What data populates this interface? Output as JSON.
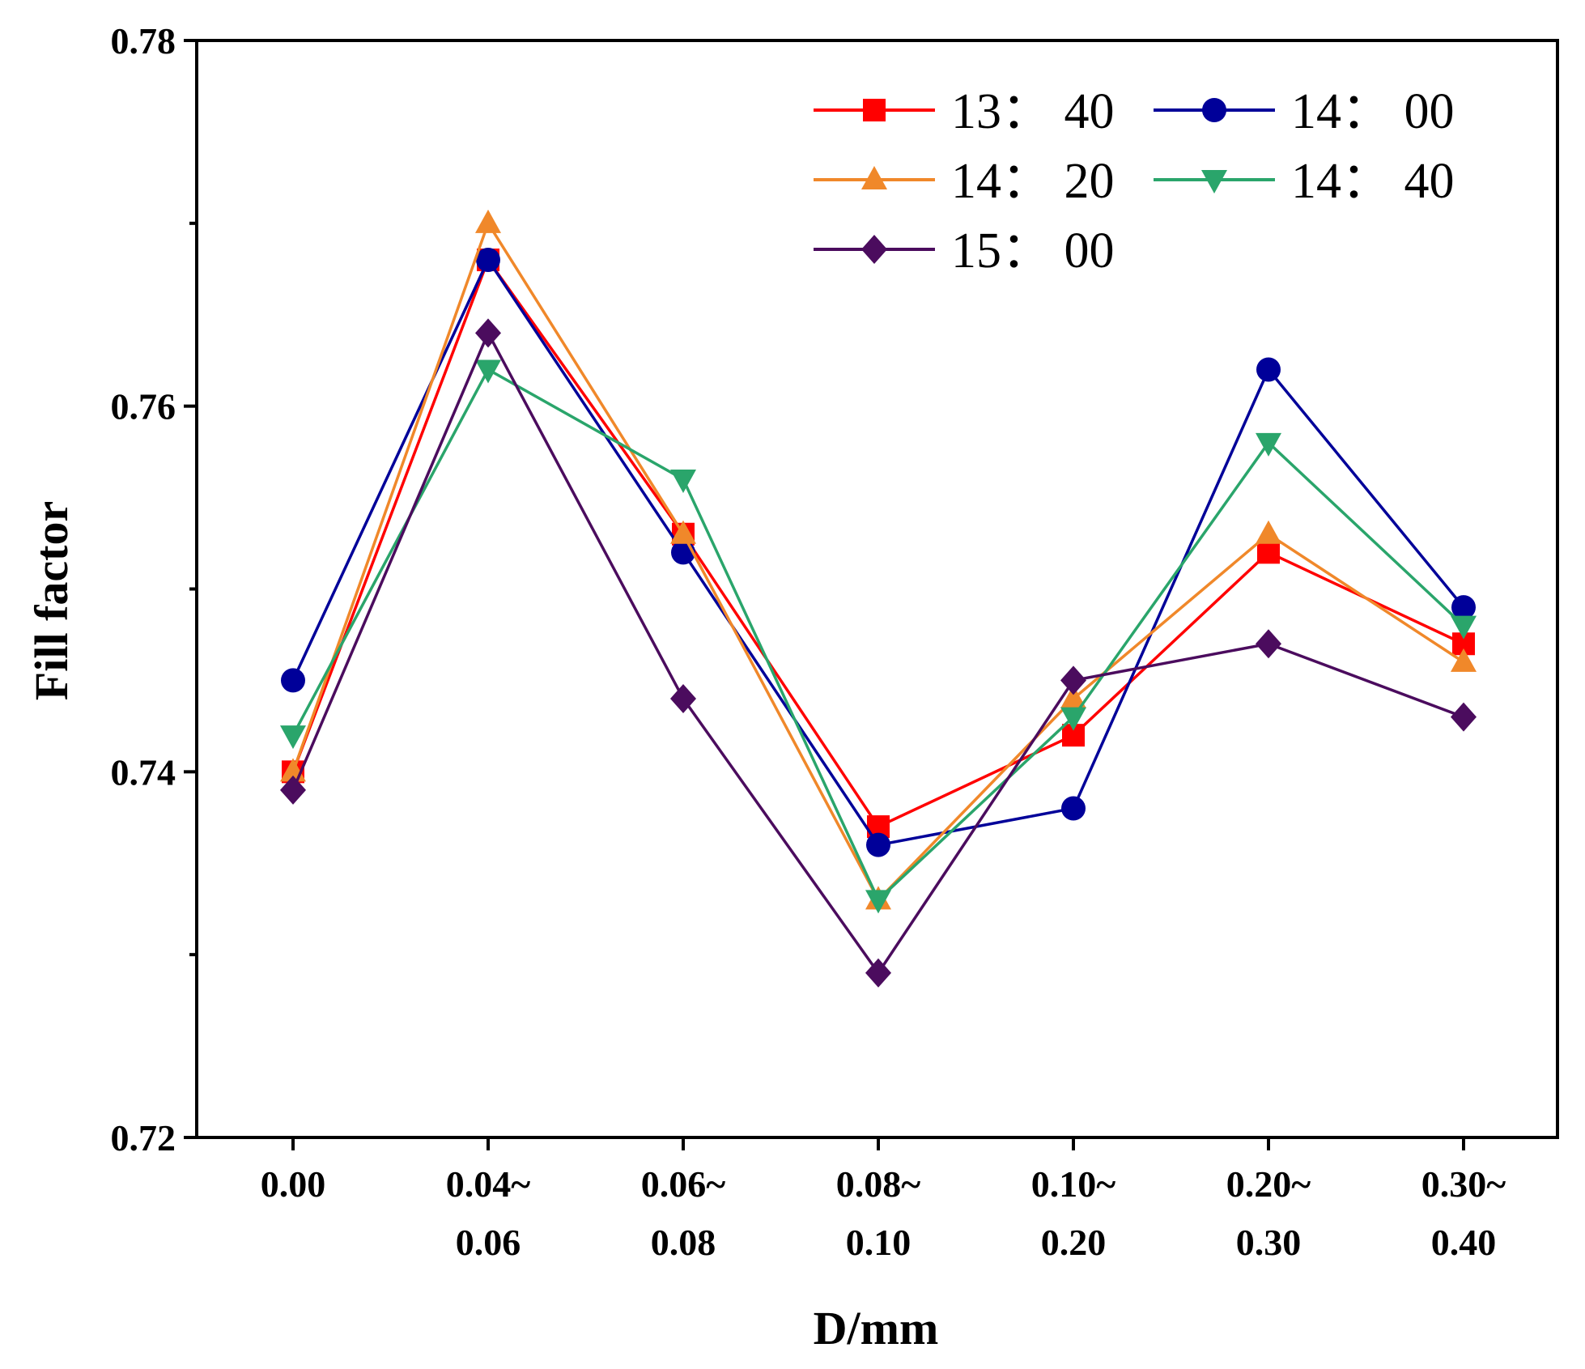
{
  "chart_data": {
    "type": "line",
    "title": "",
    "xlabel": "D/mm",
    "ylabel": "Fill factor",
    "categories": [
      [
        "0.00"
      ],
      [
        "0.04~",
        "0.06"
      ],
      [
        "0.06~",
        "0.08"
      ],
      [
        "0.08~",
        "0.10"
      ],
      [
        "0.10~",
        "0.20"
      ],
      [
        "0.20~",
        "0.30"
      ],
      [
        "0.30~",
        "0.40"
      ]
    ],
    "ylim": [
      0.72,
      0.78
    ],
    "yticks": [
      "0.72",
      "0.74",
      "0.76",
      "0.78"
    ],
    "ytick_values": [
      0.72,
      0.74,
      0.76,
      0.78
    ],
    "yminor_values": [
      0.73,
      0.75,
      0.77
    ],
    "legend_position": "top-right",
    "series": [
      {
        "name": "13： 40",
        "color": "#ff0000",
        "marker": "square",
        "values": [
          0.74,
          0.768,
          0.753,
          0.737,
          0.742,
          0.752,
          0.747
        ]
      },
      {
        "name": "14： 00",
        "color": "#000099",
        "marker": "circle",
        "values": [
          0.745,
          0.768,
          0.752,
          0.736,
          0.738,
          0.762,
          0.749
        ]
      },
      {
        "name": "14： 20",
        "color": "#f0882a",
        "marker": "triangle-up",
        "values": [
          0.74,
          0.77,
          0.753,
          0.733,
          0.744,
          0.753,
          0.746
        ]
      },
      {
        "name": "14： 40",
        "color": "#2aa56b",
        "marker": "triangle-down",
        "values": [
          0.742,
          0.762,
          0.756,
          0.733,
          0.743,
          0.758,
          0.748
        ]
      },
      {
        "name": "15： 00",
        "color": "#4b0c5e",
        "marker": "diamond",
        "values": [
          0.739,
          0.764,
          0.744,
          0.729,
          0.745,
          0.747,
          0.743
        ]
      }
    ]
  }
}
